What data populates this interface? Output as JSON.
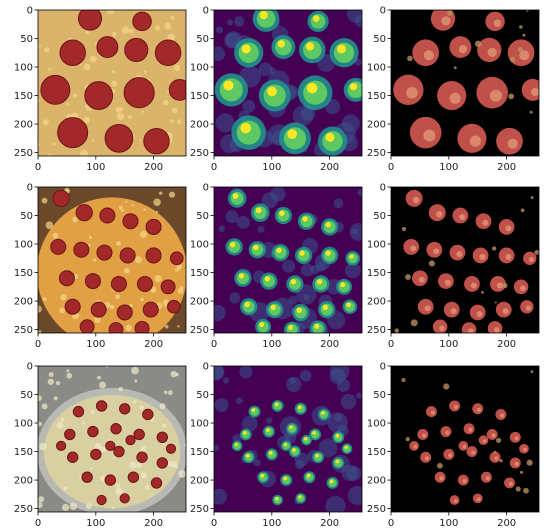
{
  "figure": {
    "background": "#ffffff",
    "panel_kinds": [
      "photo",
      "heatmap",
      "masked"
    ]
  },
  "chart_data": {
    "type": "heatmap",
    "grid": {
      "rows": 3,
      "cols": 3
    },
    "xlim": [
      0,
      256
    ],
    "ylim": [
      256,
      0
    ],
    "xticks": [
      0,
      100,
      200
    ],
    "yticks": [
      0,
      50,
      100,
      150,
      200,
      250
    ],
    "xtick_labels": [
      "0",
      "100",
      "200"
    ],
    "ytick_labels": [
      "0",
      "50",
      "100",
      "150",
      "200",
      "250"
    ],
    "colormap": [
      "#440154",
      "#3b528b",
      "#21918c",
      "#5ec962",
      "#fde725"
    ],
    "rows": [
      {
        "scene": "close-up pepperoni pizza",
        "pepperoni": [
          [
            60,
            75,
            22
          ],
          [
            120,
            65,
            18
          ],
          [
            170,
            70,
            20
          ],
          [
            225,
            75,
            22
          ],
          [
            30,
            140,
            25
          ],
          [
            105,
            150,
            24
          ],
          [
            175,
            145,
            26
          ],
          [
            245,
            140,
            18
          ],
          [
            60,
            215,
            26
          ],
          [
            140,
            225,
            24
          ],
          [
            205,
            230,
            22
          ],
          [
            90,
            15,
            20
          ],
          [
            180,
            20,
            16
          ]
        ]
      },
      {
        "scene": "whole pepperoni pizza",
        "pepperoni": [
          [
            40,
            20,
            14
          ],
          [
            80,
            45,
            14
          ],
          [
            120,
            50,
            13
          ],
          [
            160,
            60,
            13
          ],
          [
            200,
            70,
            13
          ],
          [
            35,
            105,
            13
          ],
          [
            75,
            110,
            13
          ],
          [
            115,
            115,
            13
          ],
          [
            155,
            120,
            13
          ],
          [
            200,
            120,
            13
          ],
          [
            240,
            125,
            11
          ],
          [
            50,
            160,
            13
          ],
          [
            95,
            165,
            13
          ],
          [
            140,
            170,
            13
          ],
          [
            185,
            170,
            13
          ],
          [
            225,
            175,
            12
          ],
          [
            60,
            210,
            13
          ],
          [
            105,
            215,
            13
          ],
          [
            150,
            220,
            13
          ],
          [
            195,
            215,
            13
          ],
          [
            235,
            210,
            11
          ],
          [
            85,
            245,
            12
          ],
          [
            135,
            250,
            12
          ],
          [
            180,
            248,
            12
          ]
        ]
      },
      {
        "scene": "deep dish pan pizza",
        "pepperoni": [
          [
            70,
            80,
            9
          ],
          [
            110,
            70,
            9
          ],
          [
            150,
            75,
            9
          ],
          [
            190,
            85,
            9
          ],
          [
            55,
            120,
            9
          ],
          [
            95,
            115,
            9
          ],
          [
            135,
            110,
            9
          ],
          [
            175,
            120,
            9
          ],
          [
            215,
            125,
            9
          ],
          [
            60,
            160,
            9
          ],
          [
            100,
            155,
            9
          ],
          [
            140,
            150,
            9
          ],
          [
            180,
            160,
            9
          ],
          [
            215,
            170,
            9
          ],
          [
            85,
            195,
            9
          ],
          [
            125,
            200,
            9
          ],
          [
            165,
            195,
            9
          ],
          [
            205,
            205,
            9
          ],
          [
            110,
            235,
            8
          ],
          [
            150,
            232,
            8
          ],
          [
            230,
            145,
            8
          ],
          [
            40,
            140,
            8
          ],
          [
            125,
            140,
            8
          ],
          [
            160,
            130,
            8
          ]
        ]
      }
    ]
  }
}
